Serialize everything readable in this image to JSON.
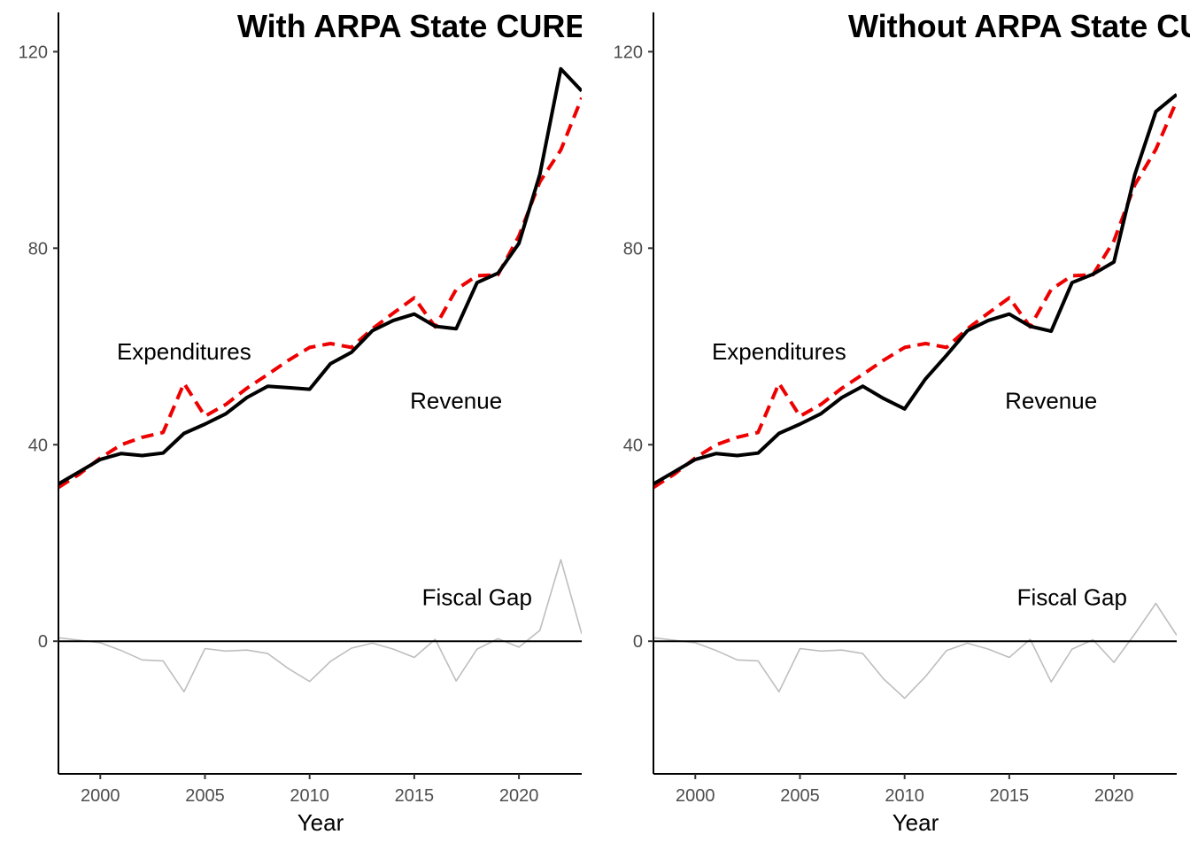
{
  "chart_data": [
    {
      "type": "line",
      "title": "With ARPA State CURE",
      "xlabel": "Year",
      "ylabel": "",
      "xlim": [
        1998,
        2023
      ],
      "ylim": [
        -27,
        128
      ],
      "x_ticks": [
        2000,
        2005,
        2010,
        2015,
        2020
      ],
      "y_ticks": [
        0,
        40,
        80,
        120
      ],
      "grid": false,
      "annotations": [
        {
          "text": "Expenditures",
          "x": 2004,
          "y": 59
        },
        {
          "text": "Revenue",
          "x": 2017,
          "y": 49
        },
        {
          "text": "Fiscal Gap",
          "x": 2018,
          "y": 9
        }
      ],
      "x": [
        1998,
        1999,
        2000,
        2001,
        2002,
        2003,
        2004,
        2005,
        2006,
        2007,
        2008,
        2009,
        2010,
        2011,
        2012,
        2013,
        2014,
        2015,
        2016,
        2017,
        2018,
        2019,
        2020,
        2021,
        2022,
        2023
      ],
      "series": [
        {
          "key": "revenue",
          "color": "#000000",
          "style": "solid",
          "values": [
            32,
            34.5,
            37,
            38.2,
            37.8,
            38.3,
            42.3,
            44.2,
            46.3,
            49.6,
            51.9,
            51.6,
            51.3,
            56.5,
            58.8,
            63.2,
            65.3,
            66.6,
            64.1,
            63.6,
            73,
            74.9,
            81,
            95,
            116.5,
            112
          ]
        },
        {
          "key": "expenditures",
          "color": "#ee0000",
          "style": "dashed",
          "values": [
            31.3,
            34,
            37.3,
            40,
            41.5,
            42.5,
            52.5,
            45.8,
            48.2,
            51.5,
            54.3,
            57.2,
            59.8,
            60.6,
            59.8,
            63.6,
            66.8,
            69.9,
            64,
            71.6,
            74.4,
            74.6,
            82.5,
            93.5,
            100,
            110.6
          ]
        },
        {
          "key": "fiscal_gap",
          "color": "#bebebe",
          "style": "thin",
          "values": [
            0.7,
            0.2,
            -0.3,
            -1.9,
            -3.8,
            -4,
            -10.3,
            -1.5,
            -2,
            -1.8,
            -2.5,
            -5.6,
            -8.2,
            -4.1,
            -1.4,
            -0.4,
            -1.6,
            -3.3,
            0.4,
            -8.1,
            -1.6,
            0.5,
            -1.2,
            2.2,
            16.6,
            1.5
          ]
        }
      ]
    },
    {
      "type": "line",
      "title": "Without ARPA State CURE",
      "xlabel": "Year",
      "ylabel": "",
      "xlim": [
        1998,
        2023
      ],
      "ylim": [
        -27,
        128
      ],
      "x_ticks": [
        2000,
        2005,
        2010,
        2015,
        2020
      ],
      "y_ticks": [
        0,
        40,
        80,
        120
      ],
      "grid": false,
      "annotations": [
        {
          "text": "Expenditures",
          "x": 2004,
          "y": 59
        },
        {
          "text": "Revenue",
          "x": 2017,
          "y": 49
        },
        {
          "text": "Fiscal Gap",
          "x": 2018,
          "y": 9
        }
      ],
      "x": [
        1998,
        1999,
        2000,
        2001,
        2002,
        2003,
        2004,
        2005,
        2006,
        2007,
        2008,
        2009,
        2010,
        2011,
        2012,
        2013,
        2014,
        2015,
        2016,
        2017,
        2018,
        2019,
        2020,
        2021,
        2022,
        2023
      ],
      "series": [
        {
          "key": "revenue",
          "color": "#000000",
          "style": "solid",
          "values": [
            32,
            34.5,
            37,
            38.2,
            37.8,
            38.3,
            42.3,
            44.2,
            46.3,
            49.6,
            51.9,
            49.4,
            47.3,
            53.4,
            58.2,
            63.2,
            65.3,
            66.6,
            64.1,
            63.1,
            73,
            74.7,
            77.2,
            95,
            107.8,
            111.3
          ]
        },
        {
          "key": "expenditures",
          "color": "#ee0000",
          "style": "dashed",
          "values": [
            31.3,
            34,
            37.3,
            40,
            41.5,
            42.5,
            52.5,
            45.8,
            48.2,
            51.5,
            54.3,
            57.2,
            59.8,
            60.6,
            59.8,
            63.6,
            66.8,
            69.9,
            64,
            71.6,
            74.4,
            74.6,
            81.5,
            92.9,
            100.1,
            110
          ]
        },
        {
          "key": "fiscal_gap",
          "color": "#bebebe",
          "style": "thin",
          "values": [
            0.7,
            0.2,
            -0.3,
            -1.9,
            -3.8,
            -4,
            -10.3,
            -1.5,
            -2,
            -1.8,
            -2.5,
            -7.7,
            -11.6,
            -7.2,
            -1.9,
            -0.4,
            -1.6,
            -3.3,
            0.4,
            -8.3,
            -1.6,
            0.3,
            -4.3,
            1.5,
            7.7,
            1.2
          ]
        }
      ]
    }
  ]
}
